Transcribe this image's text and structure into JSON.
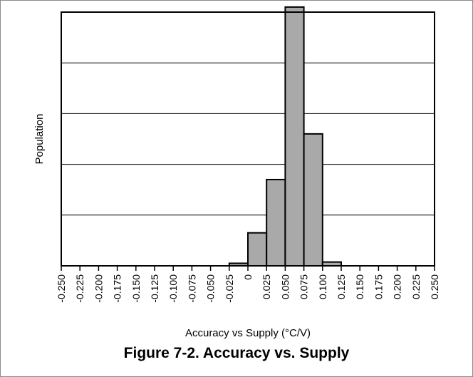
{
  "chart_data": {
    "type": "bar",
    "title": "Figure 7-2. Accuracy vs. Supply",
    "xlabel": "Accuracy vs Supply (°C/V)",
    "ylabel": "Population",
    "xlim": [
      -0.25,
      0.25
    ],
    "ylim": [
      0,
      100
    ],
    "grid": "horizontal",
    "x_tick_labels": [
      "-0.250",
      "-0.225",
      "-0.200",
      "-0.175",
      "-0.150",
      "-0.125",
      "-0.100",
      "-0.075",
      "-0.050",
      "-0.025",
      "0",
      "0.025",
      "0.050",
      "0.075",
      "0.100",
      "0.125",
      "0.150",
      "0.175",
      "0.200",
      "0.225",
      "0.250"
    ],
    "y_gridlines": [
      20,
      40,
      60,
      80
    ],
    "bin_width": 0.025,
    "bins": [
      {
        "start": -0.025,
        "end": 0.0,
        "value": 1
      },
      {
        "start": 0.0,
        "end": 0.025,
        "value": 13
      },
      {
        "start": 0.025,
        "end": 0.05,
        "value": 34
      },
      {
        "start": 0.05,
        "end": 0.075,
        "value": 102
      },
      {
        "start": 0.075,
        "end": 0.1,
        "value": 52
      },
      {
        "start": 0.1,
        "end": 0.125,
        "value": 1.5
      }
    ],
    "colors": {
      "bar_fill": "#a9a9a9",
      "bar_stroke": "#000000",
      "grid": "#000000"
    }
  }
}
